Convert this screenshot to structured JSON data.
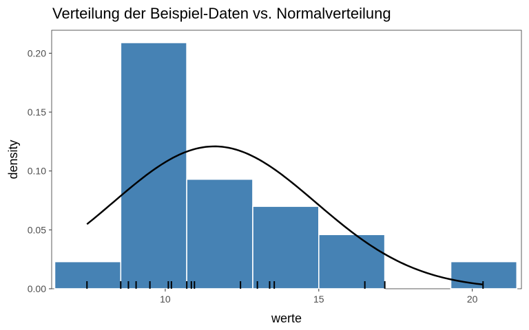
{
  "chart_data": {
    "type": "bar",
    "title": "Verteilung der Beispiel-Daten vs. Normalverteilung",
    "xlabel": "werte",
    "ylabel": "density",
    "xlim": [
      6.3,
      21.6
    ],
    "ylim": [
      0,
      0.2195
    ],
    "x_ticks": [
      10,
      15,
      20
    ],
    "y_ticks": [
      0.0,
      0.05,
      0.1,
      0.15,
      0.2
    ],
    "grid": false,
    "histogram": {
      "bin_width": 2.15,
      "fill_color": "#4682b4",
      "border_color": "#ffffff",
      "bins": [
        {
          "start": 6.4,
          "end": 8.55,
          "density": 0.023
        },
        {
          "start": 8.55,
          "end": 10.7,
          "density": 0.209
        },
        {
          "start": 10.7,
          "end": 12.85,
          "density": 0.093
        },
        {
          "start": 12.85,
          "end": 15.0,
          "density": 0.07
        },
        {
          "start": 15.0,
          "end": 17.15,
          "density": 0.046
        },
        {
          "start": 17.15,
          "end": 19.3,
          "density": 0.0
        },
        {
          "start": 19.3,
          "end": 21.45,
          "density": 0.023
        }
      ]
    },
    "normal_curve": {
      "color": "#000000",
      "mean": 11.6,
      "sd": 3.3,
      "x_range": [
        7.45,
        20.35
      ]
    },
    "rug": [
      7.45,
      8.55,
      8.8,
      9.05,
      9.5,
      10.1,
      10.2,
      10.7,
      10.85,
      10.95,
      12.45,
      13.0,
      13.4,
      13.55,
      16.5,
      17.15,
      20.35
    ]
  }
}
